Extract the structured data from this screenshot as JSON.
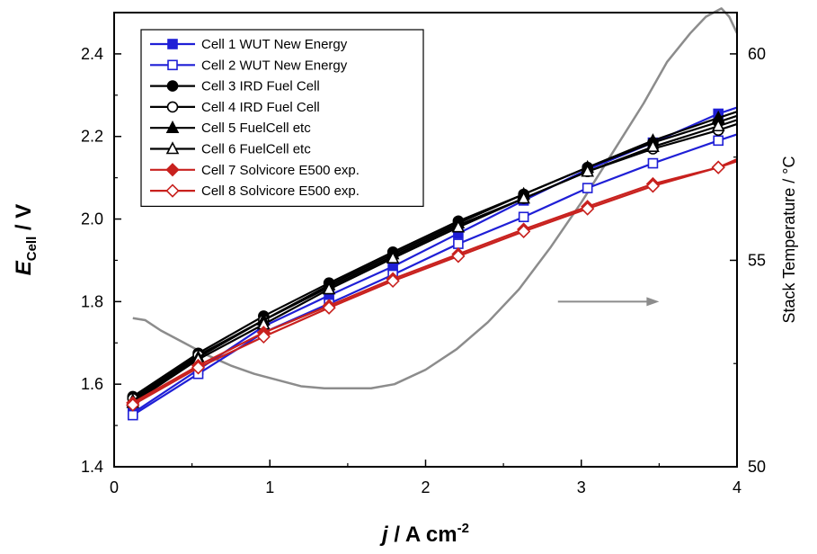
{
  "chart_data": {
    "type": "line",
    "xlabel": {
      "italic": "j",
      "rest": " / A cm",
      "sup": "-2"
    },
    "ylabel": {
      "italic": "E",
      "sub": "Cell",
      "rest": " / V"
    },
    "y2label": "Stack Temperature / °C",
    "xlim": [
      0,
      4
    ],
    "ylim": [
      1.4,
      2.5
    ],
    "y2lim": [
      50,
      61
    ],
    "xticks": [
      "0",
      "1",
      "2",
      "3",
      "4"
    ],
    "yticks": [
      "1.4",
      "1.6",
      "1.8",
      "2.0",
      "2.2",
      "2.4"
    ],
    "y2ticks": [
      "50",
      "55",
      "60"
    ],
    "legend_position": "top-left",
    "series": [
      {
        "name": "Cell 1 WUT New Energy",
        "color": "#1f1fd6",
        "marker": "square",
        "fill": true,
        "x": [
          0.12,
          0.54,
          0.96,
          1.38,
          1.79,
          2.21,
          2.63,
          3.04,
          3.46,
          3.88,
          4.0
        ],
        "y": [
          1.53,
          1.635,
          1.74,
          1.815,
          1.885,
          1.965,
          2.045,
          2.12,
          2.185,
          2.255,
          2.27
        ]
      },
      {
        "name": "Cell 2 WUT New Energy",
        "color": "#1f1fd6",
        "marker": "square",
        "fill": false,
        "x": [
          0.12,
          0.54,
          0.96,
          1.38,
          1.79,
          2.21,
          2.63,
          3.04,
          3.46,
          3.88,
          4.0
        ],
        "y": [
          1.525,
          1.625,
          1.725,
          1.795,
          1.865,
          1.94,
          2.005,
          2.075,
          2.135,
          2.19,
          2.205
        ]
      },
      {
        "name": "Cell 3 IRD Fuel Cell",
        "color": "#000000",
        "marker": "circle",
        "fill": true,
        "x": [
          0.12,
          0.54,
          0.96,
          1.38,
          1.79,
          2.21,
          2.63,
          3.04,
          3.46,
          3.88,
          4.0
        ],
        "y": [
          1.57,
          1.675,
          1.765,
          1.845,
          1.92,
          1.995,
          2.06,
          2.125,
          2.185,
          2.235,
          2.25
        ]
      },
      {
        "name": "Cell 4 IRD Fuel Cell",
        "color": "#000000",
        "marker": "circle",
        "fill": false,
        "x": [
          0.12,
          0.54,
          0.96,
          1.38,
          1.79,
          2.21,
          2.63,
          3.04,
          3.46,
          3.88,
          4.0
        ],
        "y": [
          1.565,
          1.67,
          1.755,
          1.835,
          1.91,
          1.985,
          2.05,
          2.115,
          2.17,
          2.215,
          2.23
        ]
      },
      {
        "name": "Cell 5 FuelCell etc",
        "color": "#000000",
        "marker": "triangle",
        "fill": true,
        "x": [
          0.12,
          0.54,
          0.96,
          1.38,
          1.79,
          2.21,
          2.63,
          3.04,
          3.46,
          3.88,
          4.0
        ],
        "y": [
          1.56,
          1.665,
          1.755,
          1.84,
          1.915,
          1.99,
          2.06,
          2.125,
          2.19,
          2.245,
          2.26
        ]
      },
      {
        "name": "Cell 6 FuelCell etc",
        "color": "#000000",
        "marker": "triangle",
        "fill": false,
        "x": [
          0.12,
          0.54,
          0.96,
          1.38,
          1.79,
          2.21,
          2.63,
          3.04,
          3.46,
          3.88,
          4.0
        ],
        "y": [
          1.555,
          1.66,
          1.745,
          1.83,
          1.905,
          1.98,
          2.05,
          2.115,
          2.175,
          2.225,
          2.24
        ]
      },
      {
        "name": "Cell 7 Solvicore E500 exp.",
        "color": "#c8211e",
        "marker": "diamond",
        "fill": true,
        "x": [
          0.12,
          0.54,
          0.96,
          1.38,
          1.79,
          2.21,
          2.63,
          3.04,
          3.46,
          3.88,
          4.0
        ],
        "y": [
          1.555,
          1.645,
          1.725,
          1.79,
          1.855,
          1.915,
          1.975,
          2.03,
          2.085,
          2.125,
          2.145
        ]
      },
      {
        "name": "Cell 8 Solvicore E500 exp.",
        "color": "#c8211e",
        "marker": "diamond",
        "fill": false,
        "x": [
          0.12,
          0.54,
          0.96,
          1.38,
          1.79,
          2.21,
          2.63,
          3.04,
          3.46,
          3.88,
          4.0
        ],
        "y": [
          1.55,
          1.64,
          1.715,
          1.785,
          1.85,
          1.91,
          1.97,
          2.025,
          2.08,
          2.125,
          2.14
        ]
      }
    ],
    "temperature_series": {
      "color": "#8c8c8c",
      "axis": "right",
      "x": [
        0.12,
        0.2,
        0.3,
        0.45,
        0.6,
        0.75,
        0.9,
        1.05,
        1.2,
        1.35,
        1.5,
        1.65,
        1.8,
        2.0,
        2.2,
        2.4,
        2.6,
        2.8,
        3.0,
        3.2,
        3.4,
        3.55,
        3.7,
        3.8,
        3.85,
        3.9,
        3.95,
        4.0
      ],
      "y": [
        53.6,
        53.55,
        53.3,
        53.0,
        52.7,
        52.45,
        52.25,
        52.1,
        51.95,
        51.9,
        51.9,
        51.9,
        52.0,
        52.35,
        52.85,
        53.5,
        54.3,
        55.3,
        56.4,
        57.6,
        58.8,
        59.8,
        60.5,
        60.9,
        61.0,
        61.1,
        60.9,
        60.5
      ]
    },
    "arrow": {
      "x_from": 2.85,
      "x_to": 3.5,
      "y2": 54.0,
      "color": "#8c8c8c"
    }
  }
}
